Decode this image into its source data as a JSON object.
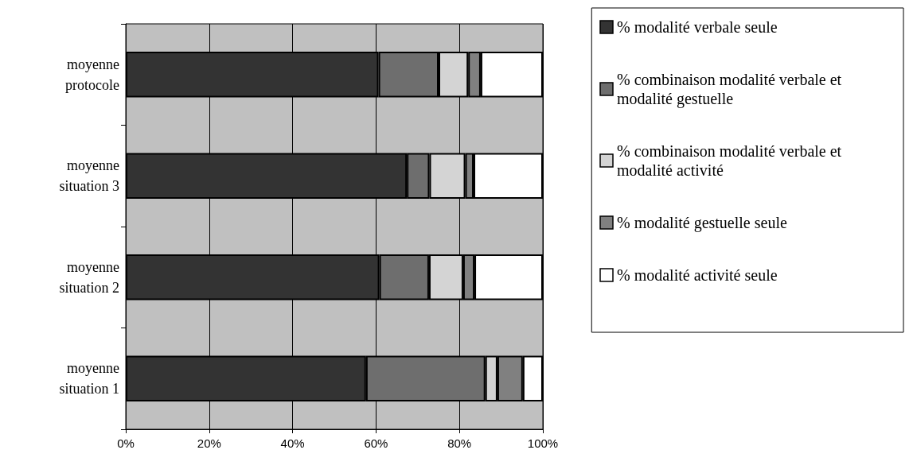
{
  "chart_data": {
    "type": "bar",
    "orientation": "horizontal",
    "stacked": true,
    "categories": [
      "moyenne\nprotocole",
      "moyenne\nsituation 3",
      "moyenne\nsituation 2",
      "moyenne\nsituation 1"
    ],
    "series": [
      {
        "name": "% modalité verbale seule",
        "color": "#333333",
        "values": [
          60.6,
          67.4,
          60.8,
          57.6
        ]
      },
      {
        "name": "% combinaison modalité verbale et modalité gestuelle",
        "color": "#6e6e6e",
        "values": [
          14.4,
          5.4,
          11.9,
          28.6
        ]
      },
      {
        "name": "% combinaison modalité verbale et modalité activité",
        "color": "#d4d4d4",
        "values": [
          7.1,
          8.6,
          8.2,
          2.9
        ]
      },
      {
        "name": "% modalité gestuelle seule",
        "color": "#808080",
        "values": [
          3.0,
          2.0,
          2.7,
          6.1
        ]
      },
      {
        "name": "% modalité activité seule",
        "color": "#ffffff",
        "values": [
          14.9,
          16.6,
          16.4,
          4.8
        ]
      }
    ],
    "xlim": [
      0,
      100
    ],
    "xticks": [
      {
        "value": 0,
        "label": "0%"
      },
      {
        "value": 20,
        "label": "20%"
      },
      {
        "value": 40,
        "label": "40%"
      },
      {
        "value": 60,
        "label": "60%"
      },
      {
        "value": 80,
        "label": "80%"
      },
      {
        "value": 100,
        "label": "100%"
      }
    ],
    "grid": "x",
    "legend": "right"
  }
}
